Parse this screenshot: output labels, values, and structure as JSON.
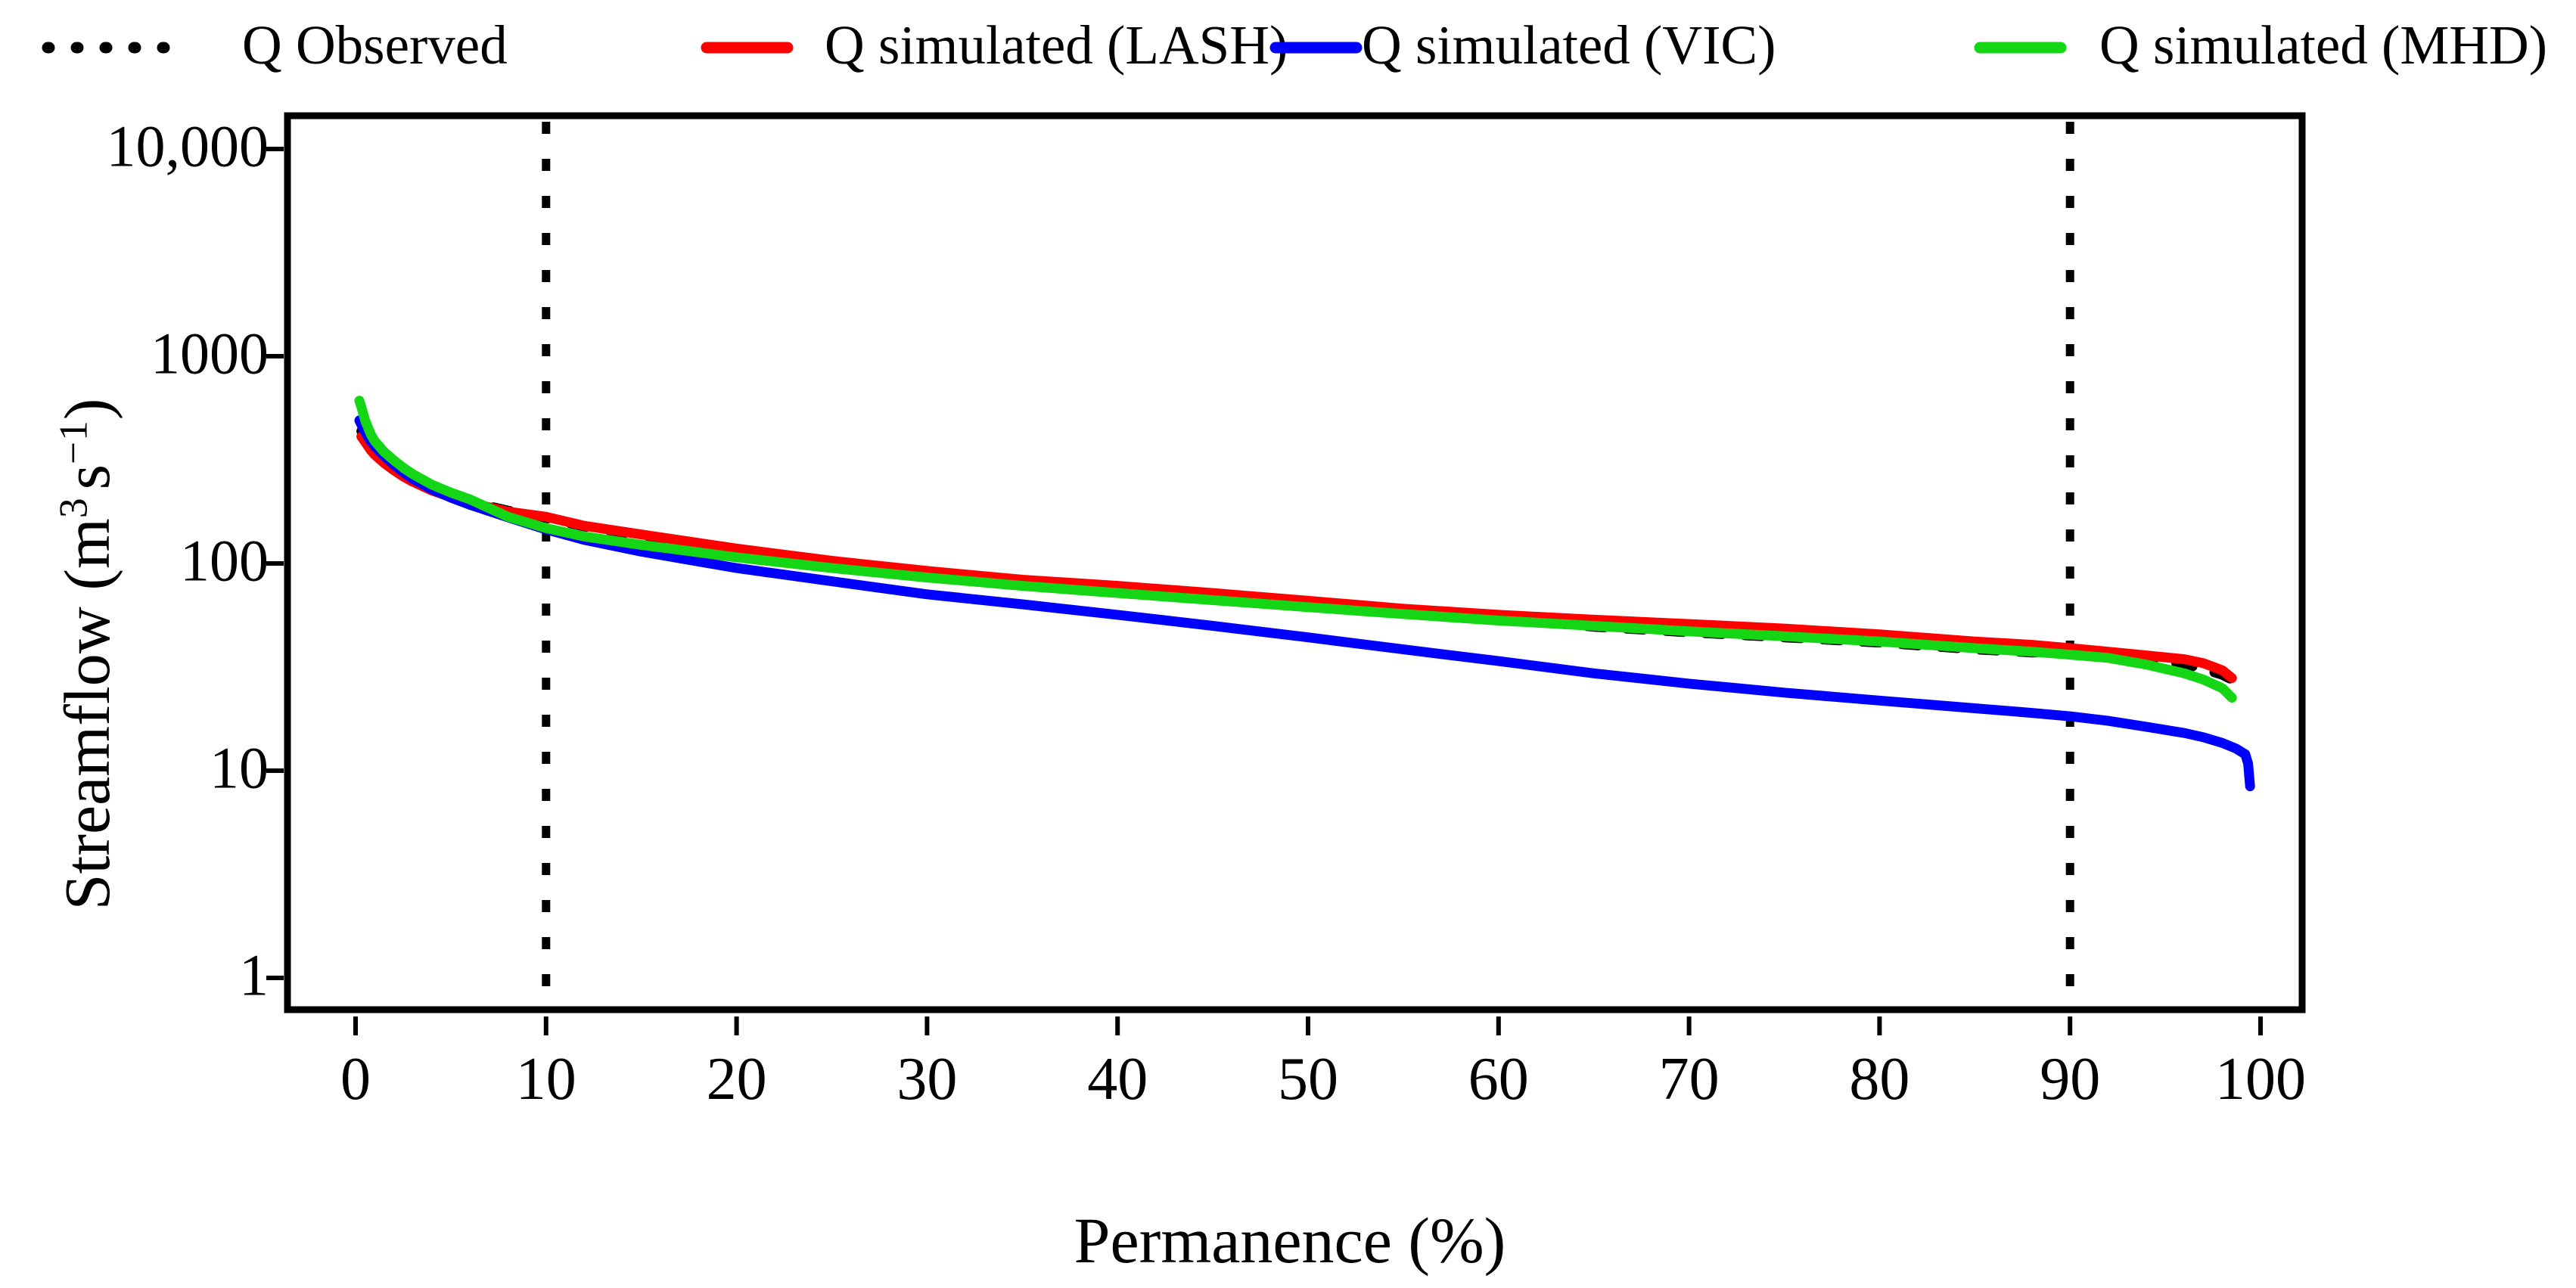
{
  "legend": {
    "items": [
      {
        "label": "Q Observed"
      },
      {
        "label": "Q simulated (LASH)"
      },
      {
        "label": "Q simulated (VIC)"
      },
      {
        "label": "Q simulated (MHD)"
      }
    ]
  },
  "axes": {
    "x_title": "Permanence (%)",
    "y_title_parts": {
      "pre": "Streamflow (m",
      "sup1": "3",
      "mid": "s",
      "sup2": "−1",
      "post": ")"
    },
    "x_ticks": [
      0,
      10,
      20,
      30,
      40,
      50,
      60,
      70,
      80,
      90,
      100
    ],
    "y_ticks": [
      {
        "label": "10,000",
        "value": 10000
      },
      {
        "label": "1000",
        "value": 1000
      },
      {
        "label": "100",
        "value": 100
      },
      {
        "label": "10",
        "value": 10
      },
      {
        "label": "1",
        "value": 1
      }
    ]
  },
  "reference_lines": {
    "x_values": [
      10,
      90
    ],
    "style": "dotted",
    "color": "#000000"
  },
  "chart_data": {
    "type": "line",
    "title": "",
    "xlabel": "Permanence (%)",
    "ylabel": "Streamflow (m3 s-1)",
    "x_range": [
      0,
      100
    ],
    "y_range_log": [
      1,
      10000
    ],
    "y_scale": "log10",
    "grid": false,
    "legend_position": "top",
    "annotations": "vertical dotted reference lines at permanence 10% and 90%",
    "series": [
      {
        "id": "observed",
        "name": "Q Observed",
        "color": "#000000",
        "line_style": "dashed",
        "points": [
          [
            0.3,
            435
          ],
          [
            0.5,
            405
          ],
          [
            0.8,
            368
          ],
          [
            1,
            348
          ],
          [
            1.5,
            315
          ],
          [
            2,
            290
          ],
          [
            2.5,
            270
          ],
          [
            3,
            253
          ],
          [
            4,
            230
          ],
          [
            5,
            212
          ],
          [
            6,
            198
          ],
          [
            8,
            180
          ],
          [
            10,
            166
          ],
          [
            12,
            151
          ],
          [
            15,
            137
          ],
          [
            20,
            117.5
          ],
          [
            25,
            102.5
          ],
          [
            30,
            91.5
          ],
          [
            35,
            83
          ],
          [
            40,
            77
          ],
          [
            45,
            71
          ],
          [
            50,
            65
          ],
          [
            55,
            59.5
          ],
          [
            60,
            54.5
          ],
          [
            65,
            49.5
          ],
          [
            70,
            46.5
          ],
          [
            75,
            44
          ],
          [
            80,
            41.5
          ],
          [
            85,
            38.5
          ],
          [
            88,
            37.2
          ],
          [
            90,
            37.5
          ],
          [
            92,
            36.5
          ],
          [
            94,
            35
          ],
          [
            96,
            32.5
          ],
          [
            97,
            31
          ],
          [
            98,
            29
          ],
          [
            98.5,
            27.5
          ]
        ]
      },
      {
        "id": "lash",
        "name": "Q simulated (LASH)",
        "color": "#ff0000",
        "line_style": "solid",
        "points": [
          [
            0.3,
            410
          ],
          [
            0.5,
            386
          ],
          [
            0.8,
            352
          ],
          [
            1,
            335
          ],
          [
            1.5,
            305
          ],
          [
            2,
            282
          ],
          [
            2.5,
            263
          ],
          [
            3,
            248
          ],
          [
            4,
            225
          ],
          [
            5,
            209
          ],
          [
            6,
            196
          ],
          [
            8,
            178
          ],
          [
            10,
            168
          ],
          [
            12,
            152
          ],
          [
            15,
            138
          ],
          [
            20,
            118
          ],
          [
            25,
            103
          ],
          [
            30,
            92
          ],
          [
            35,
            83.5
          ],
          [
            40,
            78
          ],
          [
            45,
            72
          ],
          [
            50,
            66
          ],
          [
            55,
            60.5
          ],
          [
            60,
            56.5
          ],
          [
            65,
            53.5
          ],
          [
            70,
            51
          ],
          [
            75,
            48.5
          ],
          [
            80,
            45.5
          ],
          [
            85,
            42
          ],
          [
            88,
            40.5
          ],
          [
            90,
            39
          ],
          [
            92,
            37.5
          ],
          [
            94,
            36
          ],
          [
            96,
            34.5
          ],
          [
            97,
            33
          ],
          [
            98,
            30.5
          ],
          [
            98.5,
            28
          ]
        ]
      },
      {
        "id": "vic",
        "name": "Q simulated (VIC)",
        "color": "#0000ff",
        "line_style": "solid",
        "points": [
          [
            0.2,
            490
          ],
          [
            0.4,
            448
          ],
          [
            0.7,
            400
          ],
          [
            1,
            368
          ],
          [
            1.5,
            330
          ],
          [
            2,
            300
          ],
          [
            2.5,
            276
          ],
          [
            3,
            256
          ],
          [
            4,
            228
          ],
          [
            5,
            208
          ],
          [
            6,
            192
          ],
          [
            8,
            167
          ],
          [
            10,
            146
          ],
          [
            12,
            130
          ],
          [
            15,
            114
          ],
          [
            20,
            95
          ],
          [
            25,
            82
          ],
          [
            30,
            71
          ],
          [
            35,
            63.5
          ],
          [
            40,
            56.5
          ],
          [
            45,
            50
          ],
          [
            50,
            44
          ],
          [
            55,
            38.5
          ],
          [
            60,
            33.8
          ],
          [
            65,
            29.5
          ],
          [
            70,
            26.3
          ],
          [
            75,
            23.8
          ],
          [
            80,
            21.8
          ],
          [
            85,
            20
          ],
          [
            88,
            19
          ],
          [
            90,
            18.3
          ],
          [
            92,
            17.4
          ],
          [
            94,
            16.3
          ],
          [
            96,
            15.2
          ],
          [
            97,
            14.5
          ],
          [
            98,
            13.6
          ],
          [
            98.7,
            12.8
          ],
          [
            99.2,
            12
          ],
          [
            99.35,
            10.8
          ],
          [
            99.45,
            8.4
          ]
        ]
      },
      {
        "id": "mhd",
        "name": "Q simulated (MHD)",
        "color": "#15d615",
        "line_style": "solid",
        "points": [
          [
            0.2,
            610
          ],
          [
            0.3,
            570
          ],
          [
            0.5,
            490
          ],
          [
            0.8,
            420
          ],
          [
            1,
            390
          ],
          [
            1.5,
            345
          ],
          [
            2,
            315
          ],
          [
            2.5,
            290
          ],
          [
            3,
            270
          ],
          [
            4,
            240
          ],
          [
            5,
            220
          ],
          [
            6,
            204
          ],
          [
            8,
            168
          ],
          [
            10,
            148
          ],
          [
            12,
            135
          ],
          [
            15,
            123
          ],
          [
            20,
            107
          ],
          [
            25,
            95
          ],
          [
            30,
            85.5
          ],
          [
            35,
            78
          ],
          [
            40,
            72
          ],
          [
            45,
            66.5
          ],
          [
            50,
            61.5
          ],
          [
            55,
            57
          ],
          [
            60,
            53
          ],
          [
            65,
            50
          ],
          [
            70,
            47
          ],
          [
            75,
            44.5
          ],
          [
            80,
            42
          ],
          [
            85,
            39
          ],
          [
            88,
            37.5
          ],
          [
            90,
            36.3
          ],
          [
            92,
            35
          ],
          [
            94,
            32.5
          ],
          [
            96,
            29.5
          ],
          [
            97,
            27.5
          ],
          [
            98,
            25
          ],
          [
            98.5,
            22.5
          ]
        ]
      }
    ]
  }
}
